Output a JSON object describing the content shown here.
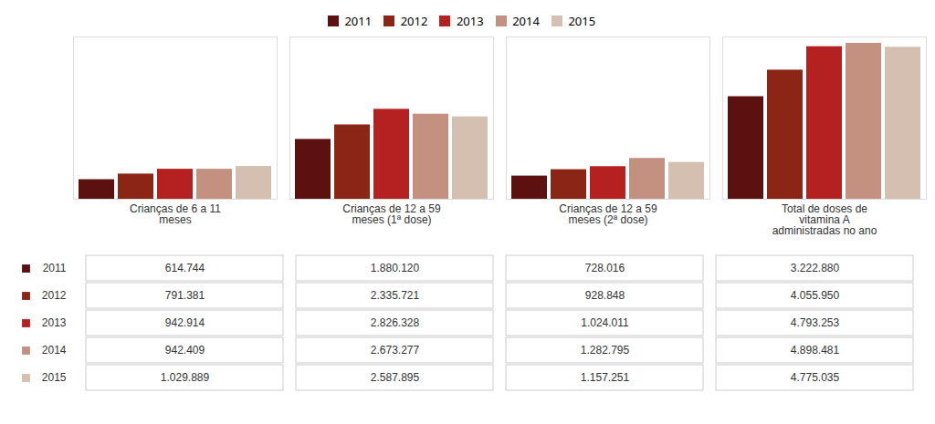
{
  "chart_data": {
    "type": "bar",
    "categories": [
      "Crianças de 6 a 11\nmeses",
      "Crianças de 12 a 59\nmeses (1ª dose)",
      "Crianças de 12 a 59\nmeses (2ª dose)",
      "Total de doses de\nvitamina A\nadministradas no ano"
    ],
    "series": [
      {
        "name": "2011",
        "color": "#5c1010",
        "values": [
          614744,
          1880120,
          728016,
          3222880
        ],
        "value_labels": [
          "614.744",
          "1.880.120",
          "728.016",
          "3.222.880"
        ]
      },
      {
        "name": "2012",
        "color": "#8b2515",
        "values": [
          791381,
          2335721,
          928848,
          4055950
        ],
        "value_labels": [
          "791.381",
          "2.335.721",
          "928.848",
          "4.055.950"
        ]
      },
      {
        "name": "2013",
        "color": "#b52020",
        "values": [
          942914,
          2826328,
          1024011,
          4793253
        ],
        "value_labels": [
          "942.914",
          "2.826.328",
          "1.024.011",
          "4.793.253"
        ]
      },
      {
        "name": "2014",
        "color": "#c49080",
        "values": [
          942409,
          2673277,
          1282795,
          4898481
        ],
        "value_labels": [
          "942.409",
          "2.673.277",
          "1.282.795",
          "4.898.481"
        ]
      },
      {
        "name": "2015",
        "color": "#d4bfb0",
        "values": [
          1029889,
          2587895,
          1157251,
          4775035
        ],
        "value_labels": [
          "1.029.889",
          "2.587.895",
          "1.157.251",
          "4.775.035"
        ]
      }
    ],
    "ylim": [
      0,
      5100000
    ],
    "tick_labels": false,
    "grid": false
  }
}
